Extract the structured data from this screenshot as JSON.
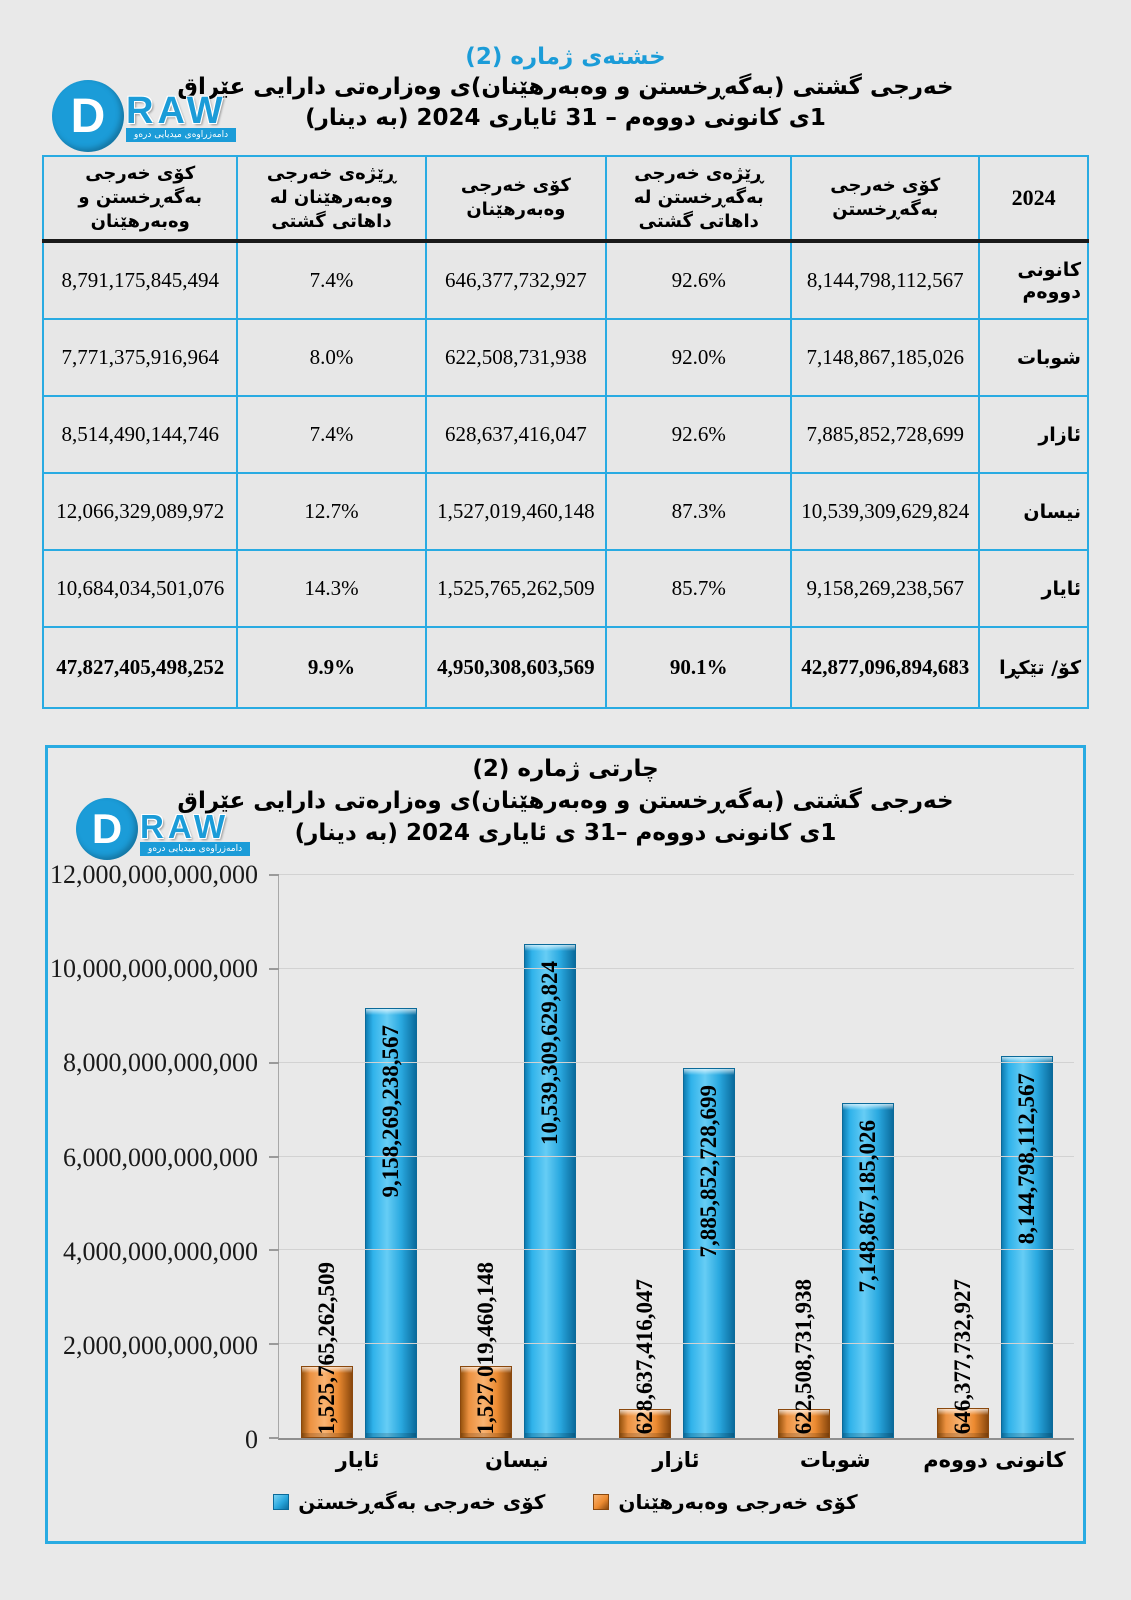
{
  "page": {
    "background": "#e9e9e9",
    "accent_blue": "#29abe2",
    "title_blue": "#1b9cd8",
    "bar_blue": "#1ea7e0",
    "bar_orange": "#ee8c33"
  },
  "logo": {
    "d": "D",
    "word": "RAW",
    "tagline": "دامەزراوەی میدیایی درەو"
  },
  "table_section": {
    "title1": "خشتەی ژمارە (2)",
    "title2": "خەرجی گشتی (بەگەڕخستن و وەبەرهێنان)ی وەزارەتی دارایی عێراق",
    "title3": "1ی کانونی دووەم – 31 ئایاری 2024 (بە دینار)",
    "columns": [
      "2024",
      "کۆی خەرجی بەگەڕخستن",
      "ڕێژەی خەرجی بەگەڕخستن لە داهاتی گشتی",
      "کۆی خەرجی وەبەرهێنان",
      "ڕێژەی خەرجی وەبەرهێنان لە داهاتی گشتی",
      "کۆی خەرجی بەگەڕخستن و وەبەرهێنان"
    ],
    "rows": [
      [
        "کانونی دووەم",
        "8,144,798,112,567",
        "92.6%",
        "646,377,732,927",
        "7.4%",
        "8,791,175,845,494"
      ],
      [
        "شوبات",
        "7,148,867,185,026",
        "92.0%",
        "622,508,731,938",
        "8.0%",
        "7,771,375,916,964"
      ],
      [
        "ئازار",
        "7,885,852,728,699",
        "92.6%",
        "628,637,416,047",
        "7.4%",
        "8,514,490,144,746"
      ],
      [
        "نیسان",
        "10,539,309,629,824",
        "87.3%",
        "1,527,019,460,148",
        "12.7%",
        "12,066,329,089,972"
      ],
      [
        "ئایار",
        "9,158,269,238,567",
        "85.7%",
        "1,525,765,262,509",
        "14.3%",
        "10,684,034,501,076"
      ]
    ],
    "total_row": [
      "کۆ/ تێکڕا",
      "42,877,096,894,683",
      "90.1%",
      "4,950,308,603,569",
      "9.9%",
      "47,827,405,498,252"
    ]
  },
  "chart_data": {
    "type": "bar",
    "title": "چارتی ژمارە (2)",
    "subtitle": "خەرجی گشتی (بەگەڕخستن و وەبەرهێنان)ی وەزارەتی دارایی عێراق",
    "period": "1ی کانونی دووەم –31 ی ئایاری 2024 (بە دینار)",
    "categories": [
      "کانونی دووەم",
      "شوبات",
      "ئازار",
      "نیسان",
      "ئایار"
    ],
    "series": [
      {
        "name": "کۆی خەرجی بەگەڕخستن",
        "color": "#1ea7e0",
        "values": [
          8144798112567,
          7148867185026,
          7885852728699,
          10539309629824,
          9158269238567
        ],
        "labels": [
          "8,144,798,112,567",
          "7,148,867,185,026",
          "7,885,852,728,699",
          "10,539,309,629,824",
          "9,158,269,238,567"
        ]
      },
      {
        "name": "کۆی خەرجی وەبەرهێنان",
        "color": "#ee8c33",
        "values": [
          646377732927,
          622508731938,
          628637416047,
          1527019460148,
          1525765262509
        ],
        "labels": [
          "646,377,732,927",
          "622,508,731,938",
          "628,637,416,047",
          "1,527,019,460,148",
          "1,525,765,262,509"
        ]
      }
    ],
    "ylim": [
      0,
      12000000000000
    ],
    "ytick_step": 2000000000000,
    "ytick_labels": [
      "0",
      "2,000,000,000,000",
      "4,000,000,000,000",
      "6,000,000,000,000",
      "8,000,000,000,000",
      "10,000,000,000,000",
      "12,000,000,000,000"
    ],
    "grid": true,
    "legend_position": "bottom"
  }
}
